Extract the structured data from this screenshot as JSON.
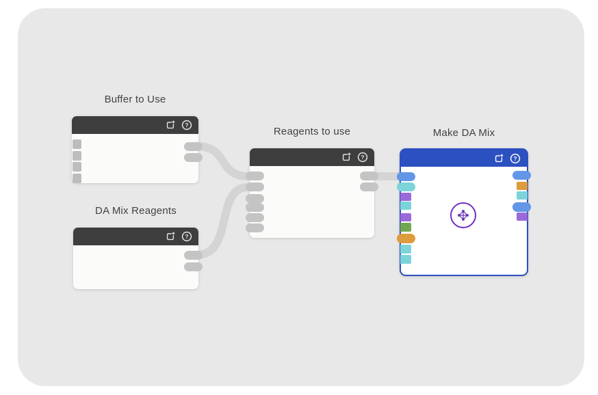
{
  "app": {
    "background": "#ffffff",
    "canvas_background": "#e8e8e8"
  },
  "palette": {
    "header_dark": "#3e3e3e",
    "header_blue": "#2b50c0",
    "node_body": "#fbfbfa",
    "title_text": "#424242",
    "wire": "#d4d4d4",
    "stub": "#c4c4c4",
    "gray_port": "#bdbdbd",
    "blue": "#6496e8",
    "teal": "#7dd3da",
    "purple": "#9b6ada",
    "green": "#72a751",
    "orange": "#dd9c3d",
    "process_icon": "#6f2fc4"
  },
  "header_icons": [
    "add-output-icon",
    "help-icon"
  ],
  "nodes": {
    "buffer": {
      "title": "Buffer to Use",
      "left_input_count": 4,
      "right_stub_count": 2
    },
    "da_mix_reagents": {
      "title": "DA Mix Reagents",
      "right_stub_count": 2
    },
    "reagents": {
      "title": "Reagents to use",
      "left_stub_count": 6,
      "right_stub_count": 2
    },
    "make_da_mix": {
      "title": "Make DA Mix",
      "center_icon": "process-icon",
      "left_ports": [
        "blue",
        "teal",
        "purple",
        "teal",
        "purple",
        "green",
        "orange",
        "teal",
        "teal"
      ],
      "right_ports": [
        "blue",
        "orange",
        "teal",
        "blue",
        "purple"
      ]
    }
  },
  "connections": [
    {
      "from": "buffer",
      "from_side": "right",
      "to": "reagents",
      "to_port_index": 0
    },
    {
      "from": "da_mix_reagents",
      "from_side": "right",
      "to": "reagents",
      "to_port_index": 1
    },
    {
      "from": "reagents",
      "from_side": "right",
      "to": "make_da_mix",
      "to_port_index": 0
    }
  ]
}
